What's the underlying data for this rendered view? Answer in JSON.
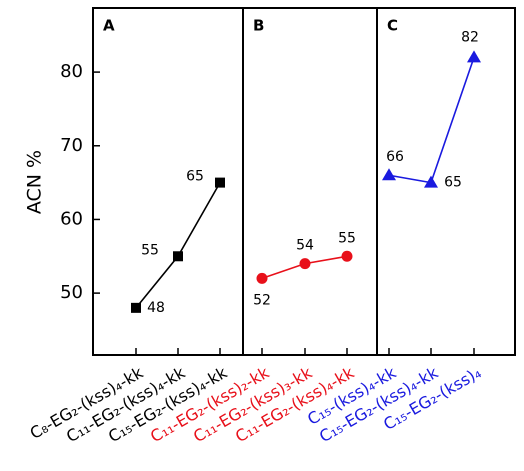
{
  "chart_data": [
    {
      "type": "line",
      "title": "A",
      "ylabel": "ACN %",
      "marker": "square",
      "color": "#000000",
      "categories": [
        "C₈-EG₂-(kss)₄-kk",
        "C₁₁-EG₂-(kss)₄-kk",
        "C₁₅-EG₂-(kss)₄-kk"
      ],
      "values": [
        48,
        55,
        65
      ],
      "ylim": [
        41.6,
        88.7
      ],
      "yticks": [
        50,
        60,
        70,
        80
      ]
    },
    {
      "type": "line",
      "title": "B",
      "marker": "circle",
      "color": "#e8101a",
      "categories": [
        "C₁₁-EG₂-(kss)₂-kk",
        "C₁₁-EG₂-(kss)₃-kk",
        "C₁₁-EG₂-(kss)₄-kk"
      ],
      "values": [
        52,
        54,
        55
      ],
      "ylim": [
        41.6,
        88.7
      ]
    },
    {
      "type": "line",
      "title": "C",
      "marker": "triangle",
      "color": "#1a1adf",
      "categories": [
        "C₁₅-(kss)₄-kk",
        "C₁₅-EG₂-(kss)₄-kk",
        "C₁₅-EG₂-(kss)₄"
      ],
      "values": [
        66,
        65,
        82
      ],
      "ylim": [
        41.6,
        88.7
      ]
    }
  ]
}
